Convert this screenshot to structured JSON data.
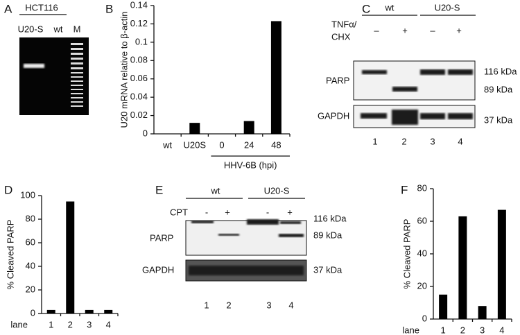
{
  "gel_a": {
    "label": "A",
    "cell_line": "HCT116",
    "lanes": [
      "U20-S",
      "wt",
      "M"
    ]
  },
  "blot_c": {
    "label": "C",
    "groups": [
      "wt",
      "U20-S"
    ],
    "treatment": [
      "TNFα/",
      "CHX"
    ],
    "signs": [
      "–",
      "+",
      "–",
      "+"
    ],
    "rows": [
      "PARP",
      "GAPDH"
    ],
    "markers": [
      "116 kDa",
      "89 kDa",
      "37 kDa"
    ],
    "lanes": [
      "1",
      "2",
      "3",
      "4"
    ]
  },
  "blot_e": {
    "label": "E",
    "groups": [
      "wt",
      "U20-S"
    ],
    "treatment": [
      "CPT"
    ],
    "signs": [
      "-",
      "+",
      "-",
      "+"
    ],
    "rows": [
      "PARP",
      "GAPDH"
    ],
    "markers": [
      "116 kDa",
      "89 kDa",
      "37 kDa"
    ],
    "lanes": [
      "1",
      "2",
      "3",
      "4"
    ]
  },
  "chart_data": [
    {
      "type": "bar",
      "label": "B",
      "y_label": "U20 mRNA relative to β-actin",
      "categories": [
        "wt",
        "U20S",
        "0",
        "24",
        "48"
      ],
      "values": [
        0,
        0.012,
        0,
        0.014,
        0.123
      ],
      "color": "#000000",
      "group_label": "HHV-6B (hpi)",
      "ylim": [
        0,
        0.14
      ],
      "yticks": [
        0,
        0.02,
        0.04,
        0.06,
        0.08,
        0.1,
        0.12,
        0.14
      ]
    },
    {
      "type": "bar",
      "label": "D",
      "y_label": "% Cleaved PARP",
      "x_label": "lane",
      "categories": [
        "1",
        "2",
        "3",
        "4"
      ],
      "values": [
        3,
        95,
        3,
        3
      ],
      "color": "#000000",
      "ylim": [
        0,
        100
      ],
      "yticks": [
        0,
        20,
        40,
        60,
        80,
        100
      ]
    },
    {
      "type": "bar",
      "label": "F",
      "y_label": "% Cleaved PARP",
      "x_label": "lane",
      "categories": [
        "1",
        "2",
        "3",
        "4"
      ],
      "values": [
        15,
        63,
        8,
        67
      ],
      "color": "#000000",
      "ylim": [
        0,
        80
      ],
      "yticks": [
        0,
        20,
        40,
        60,
        80
      ]
    }
  ]
}
